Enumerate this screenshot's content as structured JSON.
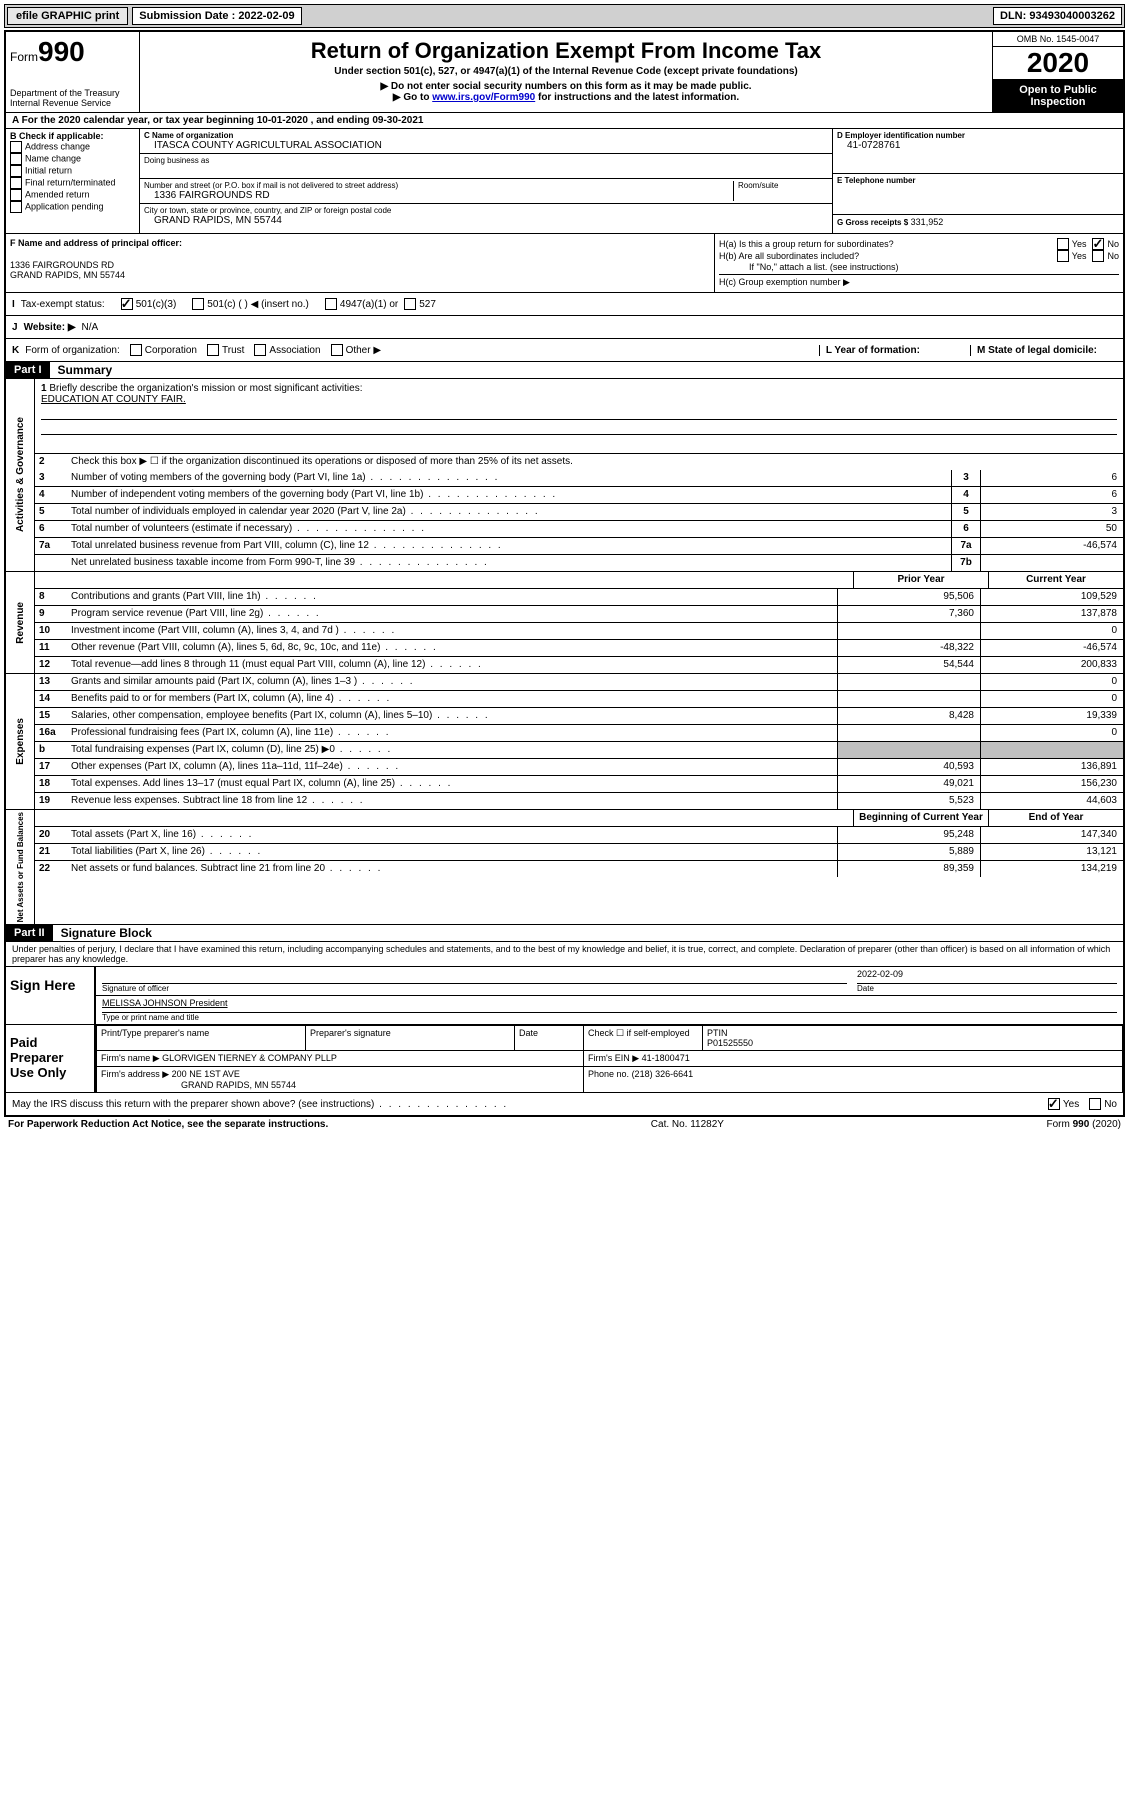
{
  "topbar": {
    "efile": "efile GRAPHIC print",
    "sub_label": "Submission Date : 2022-02-09",
    "dln_label": "DLN: 93493040003262"
  },
  "header": {
    "form_prefix": "Form",
    "form_number": "990",
    "dept": "Department of the Treasury",
    "irs": "Internal Revenue Service",
    "title": "Return of Organization Exempt From Income Tax",
    "subtitle": "Under section 501(c), 527, or 4947(a)(1) of the Internal Revenue Code (except private foundations)",
    "note1": "▶ Do not enter social security numbers on this form as it may be made public.",
    "note2_pre": "▶ Go to ",
    "note2_link": "www.irs.gov/Form990",
    "note2_post": " for instructions and the latest information.",
    "omb": "OMB No. 1545-0047",
    "year": "2020",
    "inspection": "Open to Public Inspection"
  },
  "row_a": "A For the 2020 calendar year, or tax year beginning 10-01-2020    , and ending 09-30-2021",
  "section_b": {
    "title": "B Check if applicable:",
    "options": [
      "Address change",
      "Name change",
      "Initial return",
      "Final return/terminated",
      "Amended return",
      "Application pending"
    ],
    "c_label": "C Name of organization",
    "c_value": "ITASCA COUNTY AGRICULTURAL ASSOCIATION",
    "dba_label": "Doing business as",
    "street_label": "Number and street (or P.O. box if mail is not delivered to street address)",
    "room_label": "Room/suite",
    "street_value": "1336 FAIRGROUNDS RD",
    "city_label": "City or town, state or province, country, and ZIP or foreign postal code",
    "city_value": "GRAND RAPIDS, MN  55744",
    "d_label": "D Employer identification number",
    "d_value": "41-0728761",
    "e_label": "E Telephone number",
    "g_label": "G Gross receipts $",
    "g_value": "331,952",
    "f_label": "F Name and address of principal officer:",
    "f_addr1": "1336 FAIRGROUNDS RD",
    "f_addr2": "GRAND RAPIDS, MN  55744",
    "ha_label": "H(a)  Is this a group return for subordinates?",
    "hb_label": "H(b)  Are all subordinates included?",
    "hb_note": "If \"No,\" attach a list. (see instructions)",
    "hc_label": "H(c)  Group exemption number ▶",
    "yes": "Yes",
    "no": "No"
  },
  "row_i": {
    "label": "I",
    "text": "Tax-exempt status:",
    "opt1": "501(c)(3)",
    "opt2": "501(c) (   ) ◀ (insert no.)",
    "opt3": "4947(a)(1) or",
    "opt4": "527"
  },
  "row_j": {
    "label": "J",
    "text": "Website: ▶",
    "value": "N/A"
  },
  "row_k": {
    "label": "K",
    "text": "Form of organization:",
    "opts": [
      "Corporation",
      "Trust",
      "Association",
      "Other ▶"
    ],
    "l_label": "L Year of formation:",
    "m_label": "M State of legal domicile:"
  },
  "part1": {
    "header": "Part I",
    "title": "Summary",
    "q1": "Briefly describe the organization's mission or most significant activities:",
    "q1_value": "EDUCATION AT COUNTY FAIR.",
    "q2": "Check this box ▶ ☐  if the organization discontinued its operations or disposed of more than 25% of its net assets.",
    "sections": [
      {
        "label": "Activities & Governance",
        "rows": [
          {
            "num": "3",
            "desc": "Number of voting members of the governing body (Part VI, line 1a)",
            "box": "3",
            "val": "6"
          },
          {
            "num": "4",
            "desc": "Number of independent voting members of the governing body (Part VI, line 1b)",
            "box": "4",
            "val": "6"
          },
          {
            "num": "5",
            "desc": "Total number of individuals employed in calendar year 2020 (Part V, line 2a)",
            "box": "5",
            "val": "3"
          },
          {
            "num": "6",
            "desc": "Total number of volunteers (estimate if necessary)",
            "box": "6",
            "val": "50"
          },
          {
            "num": "7a",
            "desc": "Total unrelated business revenue from Part VIII, column (C), line 12",
            "box": "7a",
            "val": "-46,574"
          },
          {
            "num": "",
            "desc": "Net unrelated business taxable income from Form 990-T, line 39",
            "box": "7b",
            "val": ""
          }
        ]
      }
    ],
    "col_headers": {
      "prior": "Prior Year",
      "current": "Current Year",
      "begin": "Beginning of Current Year",
      "end": "End of Year"
    },
    "revenue": {
      "label": "Revenue",
      "rows": [
        {
          "num": "8",
          "desc": "Contributions and grants (Part VIII, line 1h)",
          "prior": "95,506",
          "curr": "109,529"
        },
        {
          "num": "9",
          "desc": "Program service revenue (Part VIII, line 2g)",
          "prior": "7,360",
          "curr": "137,878"
        },
        {
          "num": "10",
          "desc": "Investment income (Part VIII, column (A), lines 3, 4, and 7d )",
          "prior": "",
          "curr": "0"
        },
        {
          "num": "11",
          "desc": "Other revenue (Part VIII, column (A), lines 5, 6d, 8c, 9c, 10c, and 11e)",
          "prior": "-48,322",
          "curr": "-46,574"
        },
        {
          "num": "12",
          "desc": "Total revenue—add lines 8 through 11 (must equal Part VIII, column (A), line 12)",
          "prior": "54,544",
          "curr": "200,833"
        }
      ]
    },
    "expenses": {
      "label": "Expenses",
      "rows": [
        {
          "num": "13",
          "desc": "Grants and similar amounts paid (Part IX, column (A), lines 1–3 )",
          "prior": "",
          "curr": "0"
        },
        {
          "num": "14",
          "desc": "Benefits paid to or for members (Part IX, column (A), line 4)",
          "prior": "",
          "curr": "0"
        },
        {
          "num": "15",
          "desc": "Salaries, other compensation, employee benefits (Part IX, column (A), lines 5–10)",
          "prior": "8,428",
          "curr": "19,339"
        },
        {
          "num": "16a",
          "desc": "Professional fundraising fees (Part IX, column (A), line 11e)",
          "prior": "",
          "curr": "0"
        },
        {
          "num": "b",
          "desc": "Total fundraising expenses (Part IX, column (D), line 25) ▶0",
          "prior": "SHADE",
          "curr": "SHADE"
        },
        {
          "num": "17",
          "desc": "Other expenses (Part IX, column (A), lines 11a–11d, 11f–24e)",
          "prior": "40,593",
          "curr": "136,891"
        },
        {
          "num": "18",
          "desc": "Total expenses. Add lines 13–17 (must equal Part IX, column (A), line 25)",
          "prior": "49,021",
          "curr": "156,230"
        },
        {
          "num": "19",
          "desc": "Revenue less expenses. Subtract line 18 from line 12",
          "prior": "5,523",
          "curr": "44,603"
        }
      ]
    },
    "netassets": {
      "label": "Net Assets or Fund Balances",
      "rows": [
        {
          "num": "20",
          "desc": "Total assets (Part X, line 16)",
          "prior": "95,248",
          "curr": "147,340"
        },
        {
          "num": "21",
          "desc": "Total liabilities (Part X, line 26)",
          "prior": "5,889",
          "curr": "13,121"
        },
        {
          "num": "22",
          "desc": "Net assets or fund balances. Subtract line 21 from line 20",
          "prior": "89,359",
          "curr": "134,219"
        }
      ]
    }
  },
  "part2": {
    "header": "Part II",
    "title": "Signature Block",
    "penalty": "Under penalties of perjury, I declare that I have examined this return, including accompanying schedules and statements, and to the best of my knowledge and belief, it is true, correct, and complete. Declaration of preparer (other than officer) is based on all information of which preparer has any knowledge.",
    "sign_here": "Sign Here",
    "sig_officer": "Signature of officer",
    "sig_date": "Date",
    "sig_date_val": "2022-02-09",
    "officer_name": "MELISSA JOHNSON  President",
    "officer_label": "Type or print name and title",
    "paid_prep": "Paid Preparer Use Only",
    "prep_name_label": "Print/Type preparer's name",
    "prep_sig_label": "Preparer's signature",
    "date_label": "Date",
    "check_self": "Check ☐ if self-employed",
    "ptin_label": "PTIN",
    "ptin_value": "P01525550",
    "firm_name_label": "Firm's name    ▶",
    "firm_name": "GLORVIGEN TIERNEY & COMPANY PLLP",
    "firm_ein_label": "Firm's EIN ▶",
    "firm_ein": "41-1800471",
    "firm_addr_label": "Firm's address ▶",
    "firm_addr1": "200 NE 1ST AVE",
    "firm_addr2": "GRAND RAPIDS, MN  55744",
    "phone_label": "Phone no.",
    "phone": "(218) 326-6641",
    "discuss": "May the IRS discuss this return with the preparer shown above? (see instructions)"
  },
  "footer": {
    "paperwork": "For Paperwork Reduction Act Notice, see the separate instructions.",
    "cat": "Cat. No. 11282Y",
    "form": "Form 990 (2020)"
  }
}
